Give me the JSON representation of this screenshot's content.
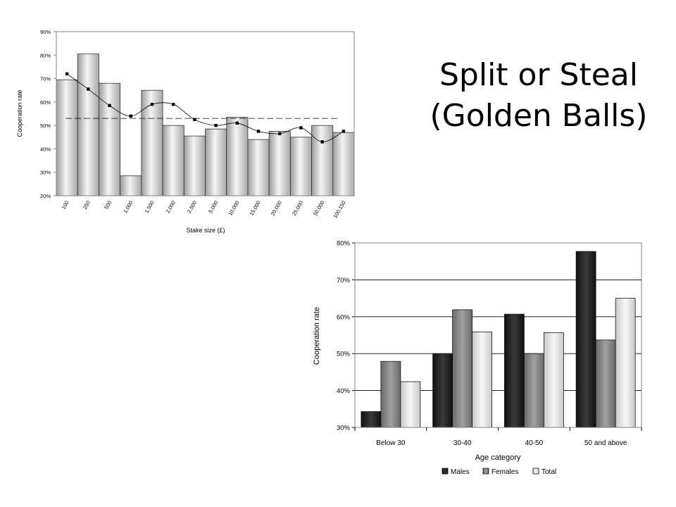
{
  "slide": {
    "title_line1": "Split or Steal",
    "title_line2": "(Golden Balls)"
  },
  "chart_data": [
    {
      "type": "bar",
      "xlabel": "Stake size (£)",
      "ylabel": "Cooperation rate",
      "ylim": [
        0.2,
        0.9
      ],
      "yticks": [
        "20%",
        "30%",
        "40%",
        "50%",
        "60%",
        "70%",
        "80%",
        "90%"
      ],
      "categories": [
        "100",
        "250",
        "500",
        "1,000",
        "1,500",
        "2,000",
        "2,500",
        "5,000",
        "10,000",
        "15,000",
        "20,000",
        "25,000",
        "50,000",
        "100,150"
      ],
      "series": [
        {
          "kind": "bar",
          "values": [
            0.695,
            0.805,
            0.68,
            0.285,
            0.65,
            0.5,
            0.455,
            0.485,
            0.535,
            0.44,
            0.475,
            0.45,
            0.5,
            0.47
          ]
        },
        {
          "kind": "line-markers",
          "values": [
            0.72,
            0.655,
            0.585,
            0.54,
            0.59,
            0.59,
            0.525,
            0.5,
            0.51,
            0.475,
            0.465,
            0.49,
            0.43,
            0.475
          ]
        },
        {
          "kind": "reference-dashed",
          "value": 0.53
        }
      ],
      "grid": false,
      "colors": {
        "bar_light": "#f4f4f4",
        "bar_dark": "#9c9c9c",
        "marker": "#000000"
      }
    },
    {
      "type": "bar",
      "xlabel": "Age category",
      "ylabel": "Cooperation rate",
      "ylim": [
        0.3,
        0.8
      ],
      "yticks": [
        "30%",
        "40%",
        "50%",
        "60%",
        "70%",
        "80%"
      ],
      "categories": [
        "Below 30",
        "30-40",
        "40-50",
        "50 and above"
      ],
      "series": [
        {
          "name": "Males",
          "values": [
            0.343,
            0.5,
            0.607,
            0.777
          ],
          "color": "#2a2a2a"
        },
        {
          "name": "Females",
          "values": [
            0.479,
            0.619,
            0.5,
            0.537
          ],
          "color": "#8a8a8a"
        },
        {
          "name": "Total",
          "values": [
            0.424,
            0.559,
            0.557,
            0.65
          ],
          "color": "#e6e6e6"
        }
      ],
      "grid": true,
      "legend": "bottom"
    }
  ]
}
